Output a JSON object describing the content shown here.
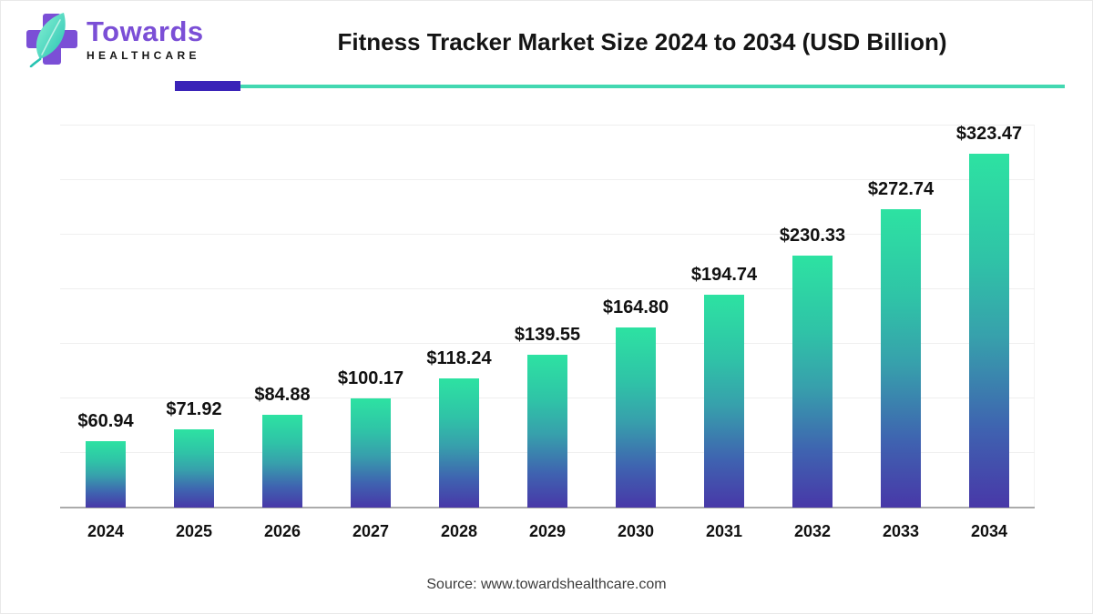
{
  "logo": {
    "brand": "Towards",
    "subtitle": "HEALTHCARE",
    "icon": "cross-leaf-icon",
    "colors": {
      "cross_purple": "#7b4fd6",
      "leaf_teal_light": "#82f0d2",
      "leaf_teal_dark": "#27c3b2"
    }
  },
  "header": {
    "title": "Fitness Tracker Market Size 2024 to 2034 (USD Billion)",
    "divider_accent_color": "#3a23b8",
    "divider_line_color": "#43d8b1"
  },
  "chart_data": {
    "type": "bar",
    "title": "Fitness Tracker Market Size 2024 to 2034 (USD Billion)",
    "categories": [
      "2024",
      "2025",
      "2026",
      "2027",
      "2028",
      "2029",
      "2030",
      "2031",
      "2032",
      "2033",
      "2034"
    ],
    "values": [
      60.94,
      71.92,
      84.88,
      100.17,
      118.24,
      139.55,
      164.8,
      194.74,
      230.33,
      272.74,
      323.47
    ],
    "value_labels": [
      "$60.94",
      "$71.92",
      "$84.88",
      "$100.17",
      "$118.24",
      "$139.55",
      "$164.80",
      "$194.74",
      "$230.33",
      "$272.74",
      "$323.47"
    ],
    "value_prefix": "$",
    "unit": "USD Billion",
    "xlabel": "",
    "ylabel": "",
    "ylim": [
      0,
      350
    ],
    "grid": "horizontal",
    "gridline_step_value": 50,
    "legend": "none",
    "bar_gradient_top": "#2de2a2",
    "bar_gradient_bottom": "#4838a8",
    "label_color": "#111111",
    "axis_line_color": "#ababab"
  },
  "footer": {
    "source": "Source: www.towardshealthcare.com"
  }
}
